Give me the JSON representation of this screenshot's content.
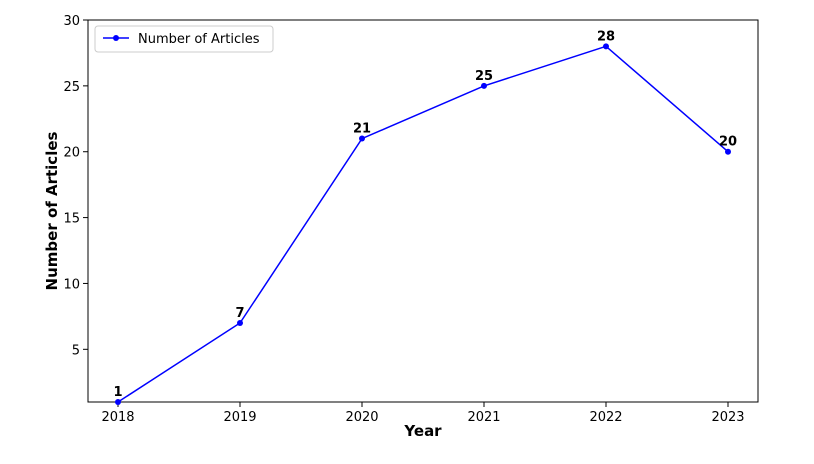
{
  "chart_data": {
    "type": "line",
    "x": [
      "2018",
      "2019",
      "2020",
      "2021",
      "2022",
      "2023"
    ],
    "series": [
      {
        "name": "Number of Articles",
        "values": [
          1,
          7,
          21,
          25,
          28,
          20
        ],
        "color": "#0000ff"
      }
    ],
    "data_labels": [
      "1",
      "7",
      "21",
      "25",
      "28",
      "20"
    ],
    "xlabel": "Year",
    "ylabel": "Number of Articles",
    "ylim": [
      1,
      30
    ],
    "yticks": [
      5,
      10,
      15,
      20,
      25,
      30
    ],
    "grid": false,
    "legend_position": "top-left"
  }
}
